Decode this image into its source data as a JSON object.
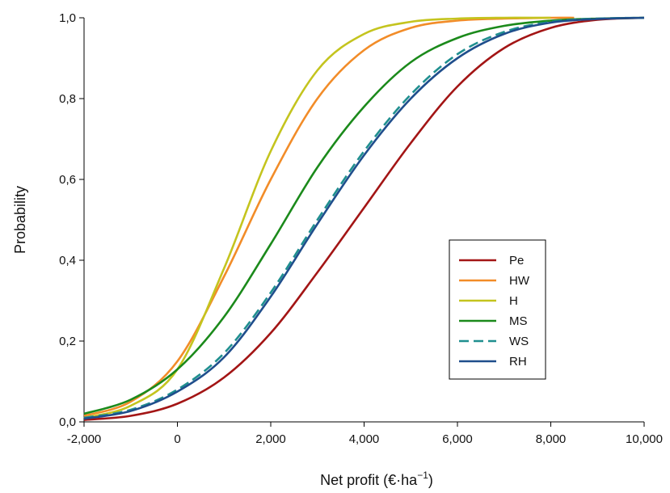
{
  "chart_data": {
    "type": "line",
    "title": "",
    "xlabel": "Net profit (€·ha",
    "xlabel_sup": "−1",
    "xlabel_close": ")",
    "ylabel": "Probability",
    "xlim": [
      -2000,
      10000
    ],
    "ylim": [
      0,
      1
    ],
    "x_ticks": [
      -2000,
      0,
      2000,
      4000,
      6000,
      8000,
      10000
    ],
    "x_tick_labels": [
      "-2,000",
      "0",
      "2,000",
      "4,000",
      "6,000",
      "8,000",
      "10,000"
    ],
    "y_ticks": [
      0,
      0.2,
      0.4,
      0.6,
      0.8,
      1.0
    ],
    "y_tick_labels": [
      "0,0",
      "0,2",
      "0,4",
      "0,6",
      "0,8",
      "1,0"
    ],
    "grid": false,
    "legend_position": "center-right",
    "series": [
      {
        "name": "Pe",
        "color": "#a31515",
        "dash": false,
        "x": [
          -2000,
          -1000,
          0,
          1000,
          2000,
          3000,
          4000,
          5000,
          6000,
          7000,
          8000,
          9000,
          10000
        ],
        "y": [
          0.005,
          0.015,
          0.045,
          0.11,
          0.22,
          0.37,
          0.53,
          0.69,
          0.83,
          0.925,
          0.975,
          0.995,
          1.0
        ]
      },
      {
        "name": "HW",
        "color": "#f28c28",
        "dash": false,
        "x": [
          -2000,
          -1000,
          0,
          1000,
          2000,
          3000,
          4000,
          5000,
          6000,
          7000,
          8000,
          8500
        ],
        "y": [
          0.015,
          0.05,
          0.15,
          0.36,
          0.6,
          0.8,
          0.92,
          0.975,
          0.993,
          0.998,
          1.0,
          1.0
        ]
      },
      {
        "name": "H",
        "color": "#c4c41e",
        "dash": false,
        "x": [
          -2000,
          -1000,
          0,
          1000,
          2000,
          3000,
          4000,
          5000,
          6000,
          7000,
          8000
        ],
        "y": [
          0.01,
          0.04,
          0.13,
          0.38,
          0.67,
          0.87,
          0.96,
          0.99,
          0.998,
          1.0,
          1.0
        ]
      },
      {
        "name": "MS",
        "color": "#1b8a1b",
        "dash": false,
        "x": [
          -2000,
          -1000,
          0,
          1000,
          2000,
          3000,
          4000,
          5000,
          6000,
          7000,
          8000,
          9000,
          10000
        ],
        "y": [
          0.02,
          0.055,
          0.13,
          0.26,
          0.44,
          0.63,
          0.78,
          0.89,
          0.95,
          0.98,
          0.993,
          0.998,
          1.0
        ]
      },
      {
        "name": "WS",
        "color": "#1f8f8f",
        "dash": true,
        "x": [
          -2000,
          -1000,
          0,
          1000,
          2000,
          3000,
          4000,
          5000,
          6000,
          7000,
          8000,
          9000,
          10000
        ],
        "y": [
          0.01,
          0.03,
          0.08,
          0.17,
          0.32,
          0.5,
          0.67,
          0.81,
          0.91,
          0.965,
          0.99,
          0.998,
          1.0
        ]
      },
      {
        "name": "RH",
        "color": "#1f4e8c",
        "dash": false,
        "x": [
          -2000,
          -1000,
          0,
          1000,
          2000,
          3000,
          4000,
          5000,
          6000,
          7000,
          8000,
          9000,
          10000
        ],
        "y": [
          0.008,
          0.027,
          0.075,
          0.16,
          0.31,
          0.49,
          0.66,
          0.8,
          0.9,
          0.96,
          0.988,
          0.997,
          1.0
        ]
      }
    ]
  }
}
